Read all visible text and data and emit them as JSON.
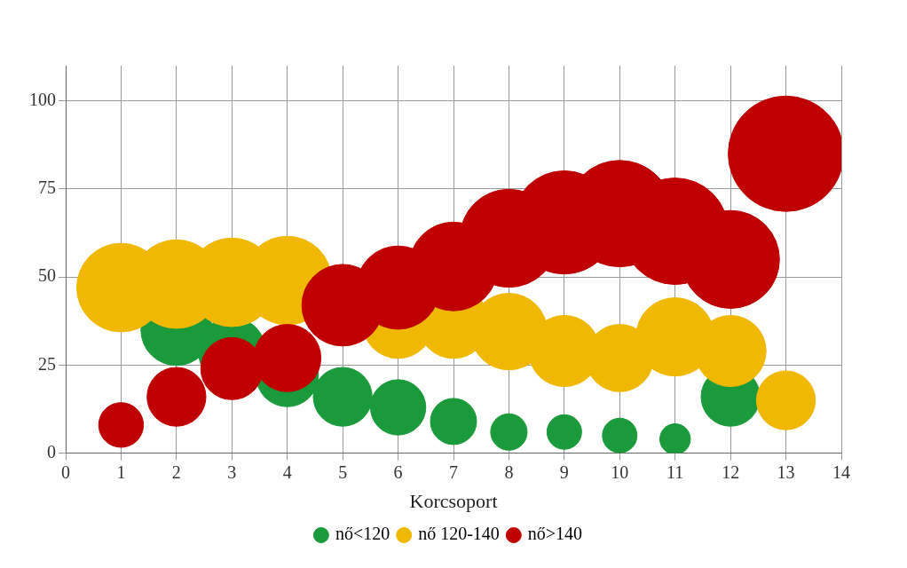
{
  "chart_data": {
    "type": "bubble",
    "xlabel": "Korcsoport",
    "xlim": [
      0,
      14
    ],
    "xticks": [
      0,
      1,
      2,
      3,
      4,
      5,
      6,
      7,
      8,
      9,
      10,
      11,
      12,
      13,
      14
    ],
    "ylim": [
      0,
      110
    ],
    "yticks": [
      0,
      25,
      50,
      75,
      100
    ],
    "grid": true,
    "legend": "bottom",
    "x": [
      1,
      2,
      3,
      4,
      5,
      6,
      7,
      8,
      9,
      10,
      11,
      12,
      13
    ],
    "series": [
      {
        "name": "nő<120",
        "color": "#1a9a3a",
        "values": [
          null,
          35,
          29,
          22,
          16,
          13,
          9,
          6,
          6,
          5,
          4,
          16,
          null
        ],
        "sizes": [
          null,
          0.38,
          0.34,
          0.29,
          0.26,
          0.23,
          0.16,
          0.1,
          0.09,
          0.09,
          0.07,
          0.26,
          null
        ]
      },
      {
        "name": "nő 120-140",
        "color": "#f0b800",
        "values": [
          47,
          48,
          48.5,
          49,
          null,
          37,
          37,
          34.5,
          29,
          27,
          33,
          29,
          15
        ],
        "sizes": [
          0.59,
          0.59,
          0.59,
          0.59,
          null,
          0.38,
          0.38,
          0.44,
          0.38,
          0.34,
          0.46,
          0.38,
          0.26
        ]
      },
      {
        "name": "nő>140",
        "color": "#c00000",
        "values": [
          8,
          16,
          24,
          27,
          42,
          47,
          53,
          61,
          65.5,
          68,
          63,
          55,
          85
        ],
        "sizes": [
          0.15,
          0.26,
          0.29,
          0.34,
          0.5,
          0.52,
          0.59,
          0.72,
          0.8,
          0.85,
          0.85,
          0.72,
          1
        ]
      }
    ]
  }
}
